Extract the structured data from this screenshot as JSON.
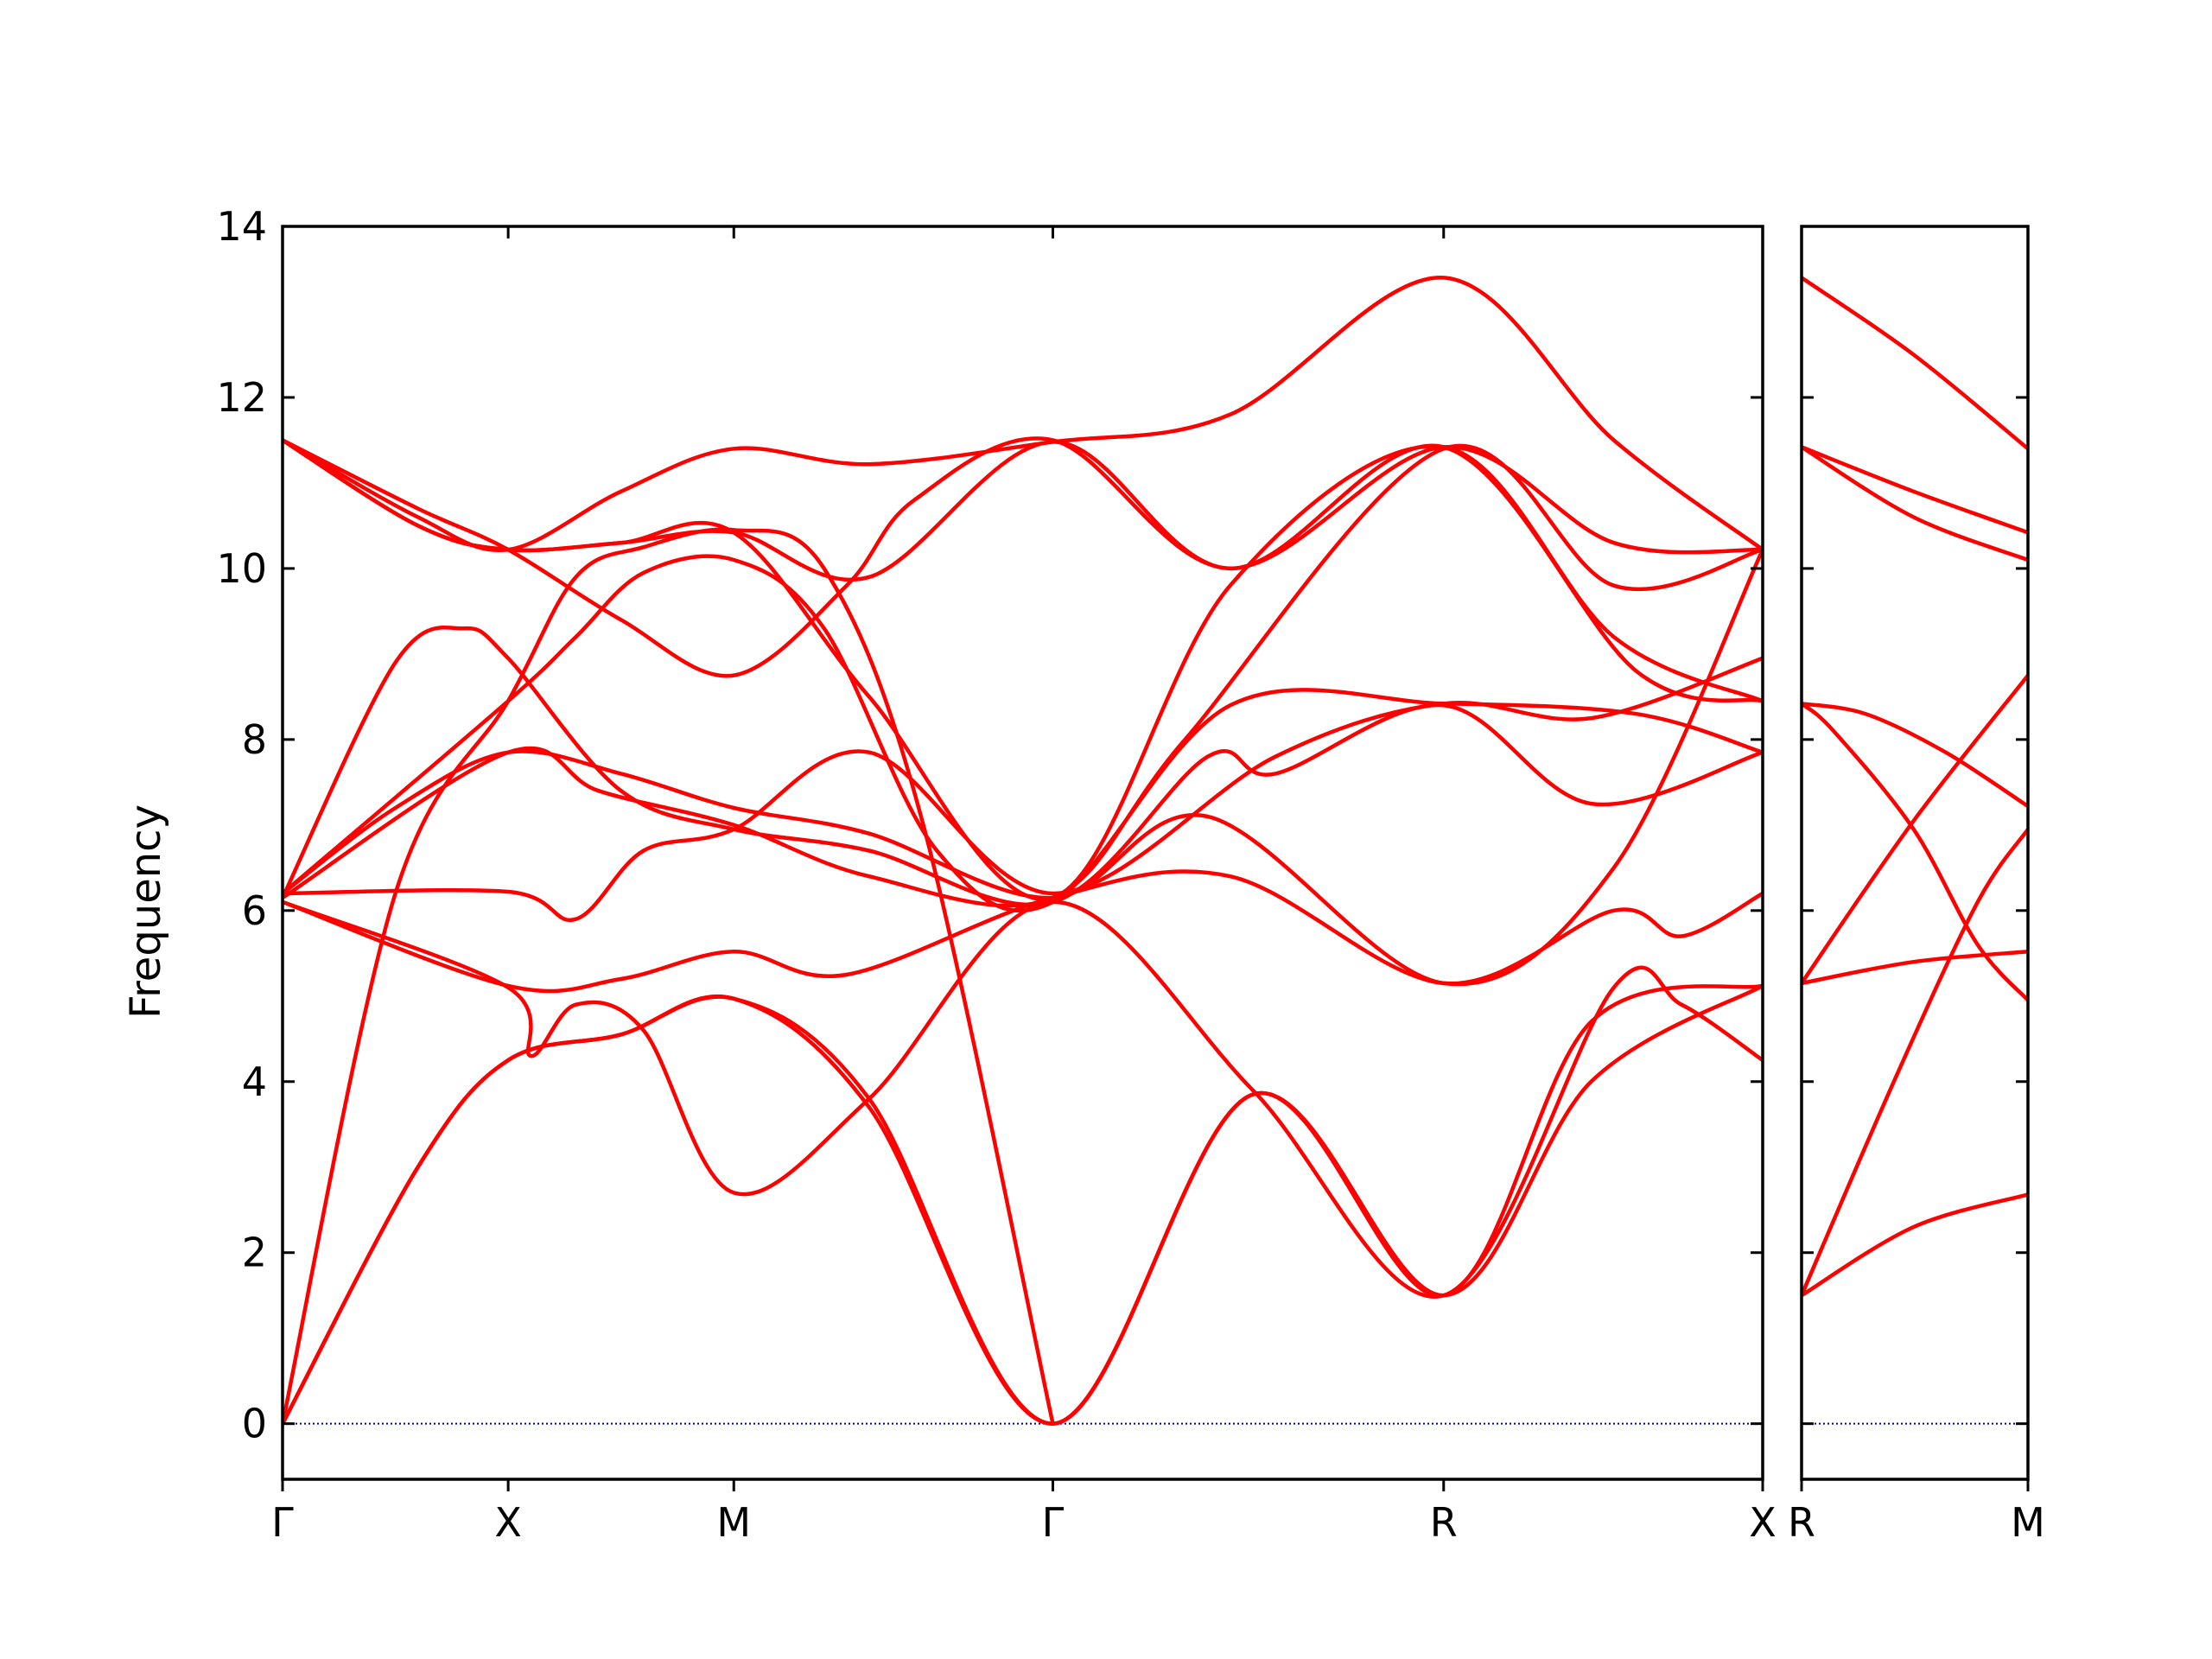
{
  "chart_data": {
    "type": "line",
    "ylabel": "Frequency",
    "ylim": [
      -0.65,
      14
    ],
    "yticks": [
      0,
      2,
      4,
      6,
      8,
      10,
      12,
      14
    ],
    "colors": {
      "bands": "#ff0000",
      "zero_line": "#0000aa",
      "axes": "#000000"
    },
    "zero_line": {
      "y": 0,
      "style": "dotted"
    },
    "grid": false,
    "panels": [
      {
        "xticks": [
          {
            "label": "Γ",
            "x": 0.0
          },
          {
            "label": "X",
            "x": 0.5
          },
          {
            "label": "M",
            "x": 1.0
          },
          {
            "label": "Γ",
            "x": 1.707
          },
          {
            "label": "R",
            "x": 2.573
          },
          {
            "label": "X",
            "x": 3.28
          }
        ],
        "xlim": [
          0.0,
          3.28
        ],
        "series": [
          {
            "x": [
              0,
              0.3,
              0.5,
              0.75,
              1.0,
              1.3,
              1.707,
              2.15,
              2.573,
              2.9,
              3.28
            ],
            "values": [
              0,
              3.0,
              4.25,
              4.55,
              4.97,
              3.8,
              0,
              3.85,
              1.5,
              4.0,
              5.12
            ]
          },
          {
            "x": [
              0,
              0.3,
              0.5,
              0.75,
              1.0,
              1.3,
              1.707,
              2.15,
              2.573,
              2.9,
              3.28
            ],
            "values": [
              0,
              3.0,
              4.25,
              4.55,
              4.97,
              3.7,
              0,
              3.85,
              1.5,
              4.7,
              5.12
            ]
          },
          {
            "x": [
              0,
              0.25,
              0.5,
              0.65,
              0.8,
              1.0,
              1.2,
              1.42,
              1.707
            ],
            "values": [
              0,
              6.2,
              8.45,
              9.9,
              10.25,
              10.45,
              10.0,
              7.0,
              0
            ]
          },
          {
            "x": [
              0,
              0.5,
              0.55,
              0.65,
              0.8,
              1.0,
              1.3,
              1.707,
              2.15,
              2.573,
              2.95,
              3.1,
              3.28
            ],
            "values": [
              6.1,
              5.1,
              4.3,
              4.9,
              4.6,
              2.7,
              3.8,
              6.1,
              3.9,
              1.5,
              5.1,
              4.9,
              4.25
            ]
          },
          {
            "x": [
              0,
              0.5,
              0.75,
              1.0,
              1.25,
              1.707,
              2.1,
              2.573,
              2.95,
              3.1,
              3.28
            ],
            "values": [
              6.1,
              5.12,
              5.2,
              5.52,
              5.25,
              6.15,
              6.4,
              5.15,
              6.0,
              5.7,
              6.2
            ]
          },
          {
            "x": [
              0,
              0.5,
              0.65,
              0.8,
              1.0,
              1.3,
              1.707,
              2.2,
              2.573,
              2.9,
              3.28
            ],
            "values": [
              6.2,
              6.22,
              5.9,
              6.7,
              6.95,
              7.85,
              6.2,
              7.8,
              8.42,
              8.25,
              8.95
            ]
          },
          {
            "x": [
              0,
              0.25,
              0.4,
              0.5,
              0.75,
              1.0,
              1.3,
              1.707,
              2.05,
              2.2,
              2.573,
              2.9,
              3.28
            ],
            "values": [
              6.15,
              8.9,
              9.3,
              8.95,
              7.4,
              6.95,
              6.7,
              6.1,
              7.8,
              7.6,
              8.4,
              7.25,
              7.85
            ]
          },
          {
            "x": [
              0,
              0.25,
              0.5,
              0.75,
              1.0,
              1.3,
              1.707,
              2.05,
              2.573,
              2.95,
              3.28
            ],
            "values": [
              6.2,
              7.2,
              7.85,
              7.6,
              7.2,
              6.9,
              6.15,
              7.1,
              5.15,
              6.5,
              10.22
            ]
          },
          {
            "x": [
              0,
              0.5,
              0.7,
              1.0,
              1.3,
              1.707,
              2.0,
              2.573,
              2.95,
              3.28
            ],
            "values": [
              6.15,
              7.85,
              7.4,
              7.0,
              6.4,
              6.15,
              8.0,
              11.4,
              9.8,
              10.22
            ]
          },
          {
            "x": [
              0,
              0.5,
              0.65,
              0.8,
              1.0,
              1.2,
              1.45,
              1.707,
              2.1,
              2.573,
              3.0,
              3.28
            ],
            "values": [
              6.2,
              8.45,
              9.2,
              9.95,
              10.1,
              9.3,
              6.7,
              6.1,
              8.4,
              8.42,
              8.3,
              7.85
            ]
          },
          {
            "x": [
              0,
              0.3,
              0.5,
              0.75,
              1.0,
              1.3,
              1.707,
              2.1,
              2.573,
              2.95,
              3.28
            ],
            "values": [
              11.5,
              10.5,
              10.22,
              10.3,
              10.42,
              8.5,
              6.15,
              9.8,
              11.42,
              9.2,
              8.45
            ]
          },
          {
            "x": [
              0,
              0.3,
              0.5,
              0.75,
              1.0,
              1.25,
              1.4,
              1.707,
              2.1,
              2.573,
              3.0,
              3.28
            ],
            "values": [
              11.5,
              10.7,
              10.22,
              9.4,
              8.75,
              9.8,
              10.8,
              11.5,
              10.0,
              11.42,
              8.8,
              8.45
            ]
          },
          {
            "x": [
              0,
              0.3,
              0.5,
              0.75,
              1.0,
              1.3,
              1.707,
              2.1,
              2.573,
              2.95,
              3.28
            ],
            "values": [
              11.5,
              10.5,
              10.22,
              10.3,
              10.42,
              9.9,
              11.48,
              10.0,
              11.42,
              10.3,
              10.22
            ]
          },
          {
            "x": [
              0,
              0.3,
              0.5,
              0.75,
              1.0,
              1.3,
              1.707,
              2.1,
              2.573,
              2.95,
              3.28
            ],
            "values": [
              11.5,
              10.6,
              10.22,
              10.9,
              11.4,
              11.22,
              11.48,
              11.8,
              13.4,
              11.5,
              10.22
            ]
          }
        ]
      },
      {
        "xticks": [
          {
            "label": "R",
            "x": 0.0
          },
          {
            "label": "M",
            "x": 0.707
          }
        ],
        "xlim": [
          0.0,
          0.707
        ],
        "series": [
          {
            "x": [
              0,
              0.35,
              0.707
            ],
            "values": [
              1.5,
              2.3,
              2.68
            ]
          },
          {
            "x": [
              0,
              0.3,
              0.55,
              0.707
            ],
            "values": [
              1.5,
              4.1,
              6.1,
              6.95
            ]
          },
          {
            "x": [
              0,
              0.35,
              0.707
            ],
            "values": [
              5.15,
              5.4,
              5.52
            ]
          },
          {
            "x": [
              0,
              0.35,
              0.707
            ],
            "values": [
              5.15,
              7.05,
              8.75
            ]
          },
          {
            "x": [
              0,
              0.1,
              0.35,
              0.55,
              0.707
            ],
            "values": [
              8.42,
              8.1,
              6.95,
              5.6,
              4.95
            ]
          },
          {
            "x": [
              0,
              0.2,
              0.45,
              0.707
            ],
            "values": [
              8.42,
              8.3,
              7.85,
              7.22
            ]
          },
          {
            "x": [
              0,
              0.35,
              0.707
            ],
            "values": [
              11.42,
              10.6,
              10.1
            ]
          },
          {
            "x": [
              0,
              0.35,
              0.707
            ],
            "values": [
              11.42,
              10.9,
              10.42
            ]
          },
          {
            "x": [
              0,
              0.35,
              0.707
            ],
            "values": [
              13.4,
              12.5,
              11.4
            ]
          }
        ]
      }
    ]
  }
}
